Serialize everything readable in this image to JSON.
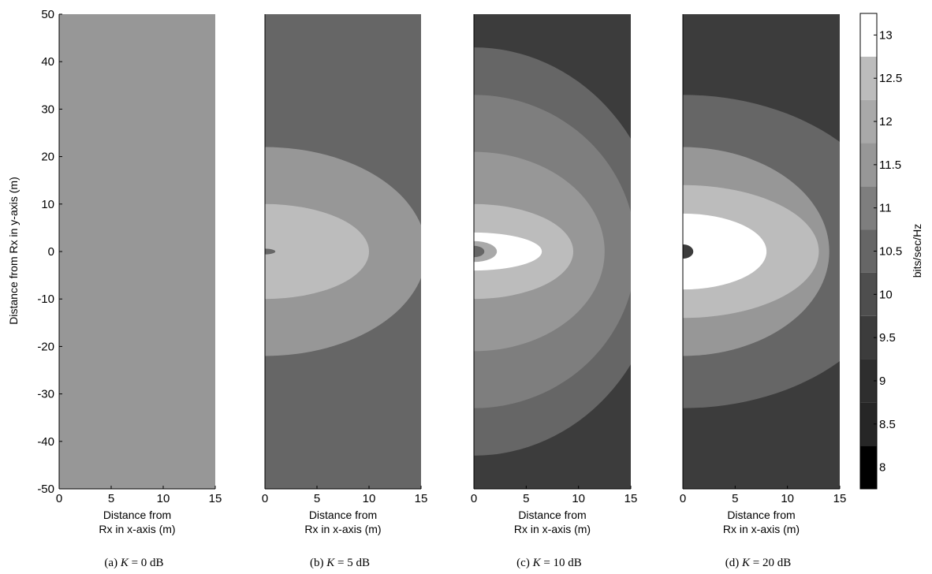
{
  "chart_data": {
    "type": "heatmap",
    "shared_ylabel": "Distance from Rx in y-axis (m)",
    "xlim": [
      0,
      15
    ],
    "ylim": [
      -50,
      50
    ],
    "x_ticks": [
      "0",
      "5",
      "10",
      "15"
    ],
    "y_ticks": [
      "50",
      "40",
      "30",
      "20",
      "10",
      "0",
      "-10",
      "-20",
      "-30",
      "-40",
      "-50"
    ],
    "colorbar": {
      "label": "bits/sec/Hz",
      "range": [
        7.75,
        13.25
      ],
      "ticks": [
        "13",
        "12.5",
        "12",
        "11.5",
        "11",
        "10.5",
        "10",
        "9.5",
        "9",
        "8.5",
        "8"
      ],
      "levels": [
        {
          "from": 7.75,
          "to": 8.25,
          "color": "#000000"
        },
        {
          "from": 8.25,
          "to": 8.75,
          "color": "#262626"
        },
        {
          "from": 8.75,
          "to": 9.25,
          "color": "#2e2e2e"
        },
        {
          "from": 9.25,
          "to": 9.75,
          "color": "#3c3c3c"
        },
        {
          "from": 9.75,
          "to": 10.25,
          "color": "#4e4e4e"
        },
        {
          "from": 10.25,
          "to": 10.75,
          "color": "#666666"
        },
        {
          "from": 10.75,
          "to": 11.25,
          "color": "#7e7e7e"
        },
        {
          "from": 11.25,
          "to": 11.75,
          "color": "#979797"
        },
        {
          "from": 11.75,
          "to": 12.25,
          "color": "#a9a9a9"
        },
        {
          "from": 12.25,
          "to": 12.75,
          "color": "#bcbcbc"
        },
        {
          "from": 12.75,
          "to": 13.25,
          "color": "#ffffff"
        }
      ]
    },
    "panels": [
      {
        "caption": "(a)",
        "k_symbol": "K",
        "k_value": "= 0 dB",
        "xlabel": [
          "Distance from",
          "Rx in x-axis (m)"
        ],
        "background": 11.5,
        "regions": []
      },
      {
        "caption": "(b)",
        "k_symbol": "K",
        "k_value": "= 5 dB",
        "xlabel": [
          "Distance from",
          "Rx in x-axis (m)"
        ],
        "background": 10.5,
        "regions": [
          {
            "level": 11.5,
            "rx": 15.5,
            "ry": 22
          },
          {
            "level": 12.5,
            "rx": 10,
            "ry": 10
          },
          {
            "level": 10.5,
            "rx": 1.0,
            "ry": 0.6
          }
        ]
      },
      {
        "caption": "(c)",
        "k_symbol": "K",
        "k_value": "= 10 dB",
        "xlabel": [
          "Distance from",
          "Rx in x-axis (m)"
        ],
        "background": 9.5,
        "regions": [
          {
            "level": 10.5,
            "rx": 18,
            "ry": 43
          },
          {
            "level": 11,
            "rx": 15.5,
            "ry": 33
          },
          {
            "level": 11.5,
            "rx": 12.5,
            "ry": 21
          },
          {
            "level": 12.5,
            "rx": 9.5,
            "ry": 10
          },
          {
            "level": 13,
            "rx": 6.5,
            "ry": 4
          },
          {
            "level": 12,
            "rx": 2.2,
            "ry": 2.2
          },
          {
            "level": 10.5,
            "rx": 1.0,
            "ry": 1.2
          }
        ]
      },
      {
        "caption": "(d)",
        "k_symbol": "K",
        "k_value": "= 20 dB",
        "xlabel": [
          "Distance from",
          "Rx in x-axis (m)"
        ],
        "background": 9.5,
        "regions": [
          {
            "level": 10.5,
            "rx": 21,
            "ry": 33
          },
          {
            "level": 11.5,
            "rx": 14,
            "ry": 22
          },
          {
            "level": 12.5,
            "rx": 13,
            "ry": 14
          },
          {
            "level": 13,
            "rx": 8,
            "ry": 8
          },
          {
            "level": 9.5,
            "rx": 1.0,
            "ry": 1.5
          }
        ]
      }
    ]
  }
}
